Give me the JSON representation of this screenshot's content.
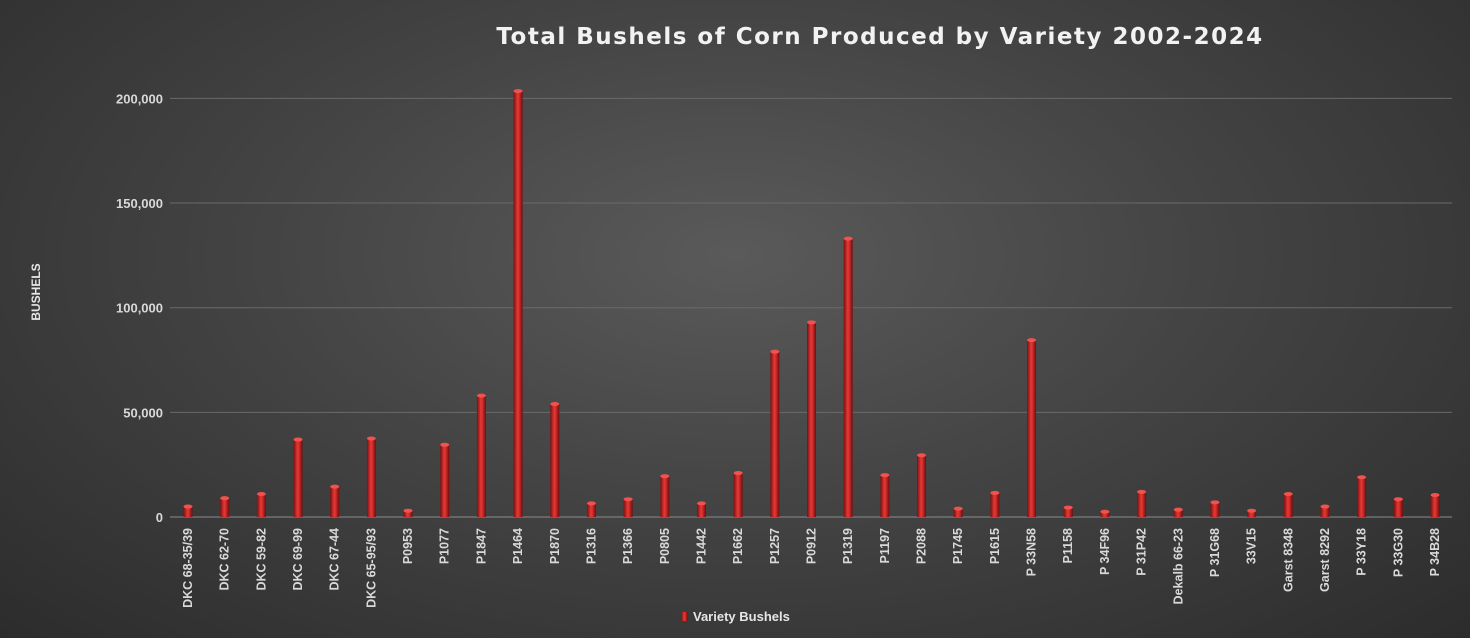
{
  "chart_data": {
    "type": "bar",
    "title": "Total Bushels of Corn Produced by Variety 2002-2024",
    "ylabel": "BUSHELS",
    "xlabel": "",
    "ylim": [
      0,
      215000
    ],
    "yticks": [
      0,
      50000,
      100000,
      150000,
      200000
    ],
    "ytick_labels": [
      "0",
      "50,000",
      "100,000",
      "150,000",
      "200,000"
    ],
    "grid": true,
    "legend_placement": "bottom",
    "categories": [
      "DKC 68-35/39",
      "DKC 62-70",
      "DKC 59-82",
      "DKC 69-99",
      "DKC 67-44",
      "DKC 65-95/93",
      "P0953",
      "P1077",
      "P1847",
      "P1464",
      "P1870",
      "P1316",
      "P1366",
      "P0805",
      "P1442",
      "P1662",
      "P1257",
      "P0912",
      "P1319",
      "P1197",
      "P2088",
      "P1745",
      "P1615",
      "P 33N58",
      "P1158",
      "P 34F96",
      "P 31P42",
      "Dekalb 66-23",
      "P 31G68",
      "33V15",
      "Garst 8348",
      "Garst 8292",
      "P 33Y18",
      "P 33G30",
      "P 34B28"
    ],
    "series": [
      {
        "name": "Variety Bushels",
        "color": "#c62828",
        "values": [
          5000,
          9000,
          11000,
          37000,
          14500,
          37500,
          3000,
          34500,
          58000,
          203500,
          54000,
          6500,
          8500,
          19500,
          6500,
          21000,
          79000,
          93000,
          133000,
          20000,
          29500,
          4000,
          11500,
          84500,
          4500,
          2500,
          12000,
          3500,
          7000,
          3000,
          11000,
          5000,
          19000,
          8500,
          10500
        ]
      }
    ]
  }
}
